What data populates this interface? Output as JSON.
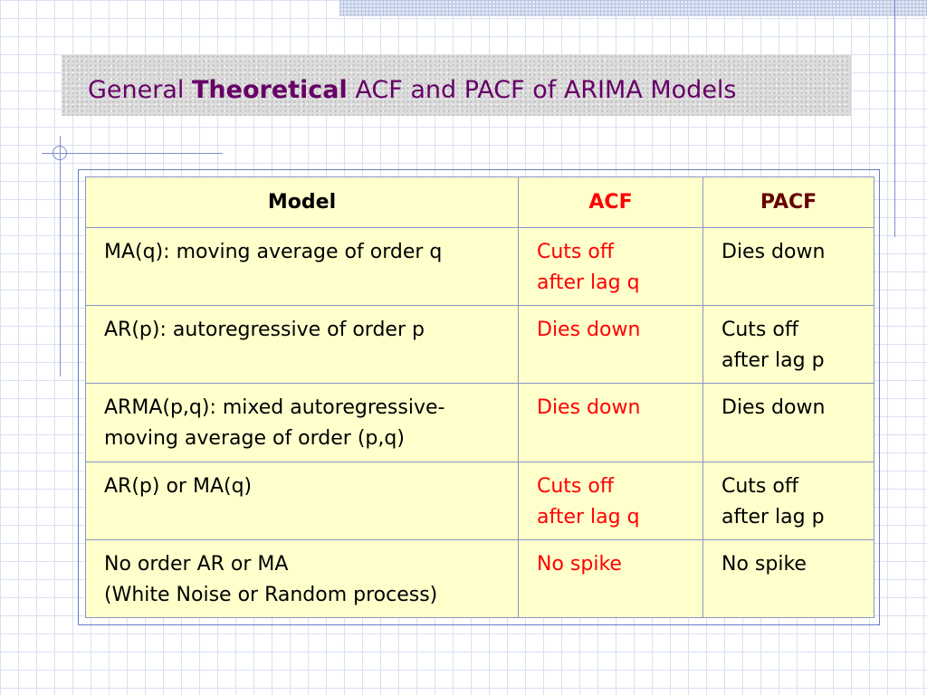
{
  "slide": {
    "title_pre": "General ",
    "title_bold": "Theoretical",
    "title_post": " ACF and PACF of ARIMA Models"
  },
  "table": {
    "headers": {
      "model": "Model",
      "acf": "ACF",
      "pacf": "PACF"
    },
    "rows": [
      {
        "model": [
          "MA(q): moving average of order q"
        ],
        "acf": [
          "Cuts off",
          "after lag q"
        ],
        "pacf": [
          "Dies down"
        ]
      },
      {
        "model": [
          "AR(p): autoregressive of order p"
        ],
        "acf": [
          "Dies down"
        ],
        "pacf": [
          "Cuts off",
          "after lag p"
        ]
      },
      {
        "model": [
          "ARMA(p,q): mixed autoregressive-",
          "moving average of order (p,q)"
        ],
        "acf": [
          "Dies down"
        ],
        "pacf": [
          "Dies down"
        ]
      },
      {
        "model": [
          "AR(p) or MA(q)"
        ],
        "acf": [
          "Cuts off",
          "after lag q"
        ],
        "pacf": [
          "Cuts off",
          "after lag p"
        ]
      },
      {
        "model": [
          "No order AR or MA",
          "(White Noise or Random process)"
        ],
        "acf": [
          "No spike"
        ],
        "pacf": [
          "No spike"
        ]
      }
    ]
  },
  "colors": {
    "title": "#660066",
    "acf_text": "#ff0000",
    "pacf_header": "#660000",
    "cell_background": "#ffffcc"
  }
}
